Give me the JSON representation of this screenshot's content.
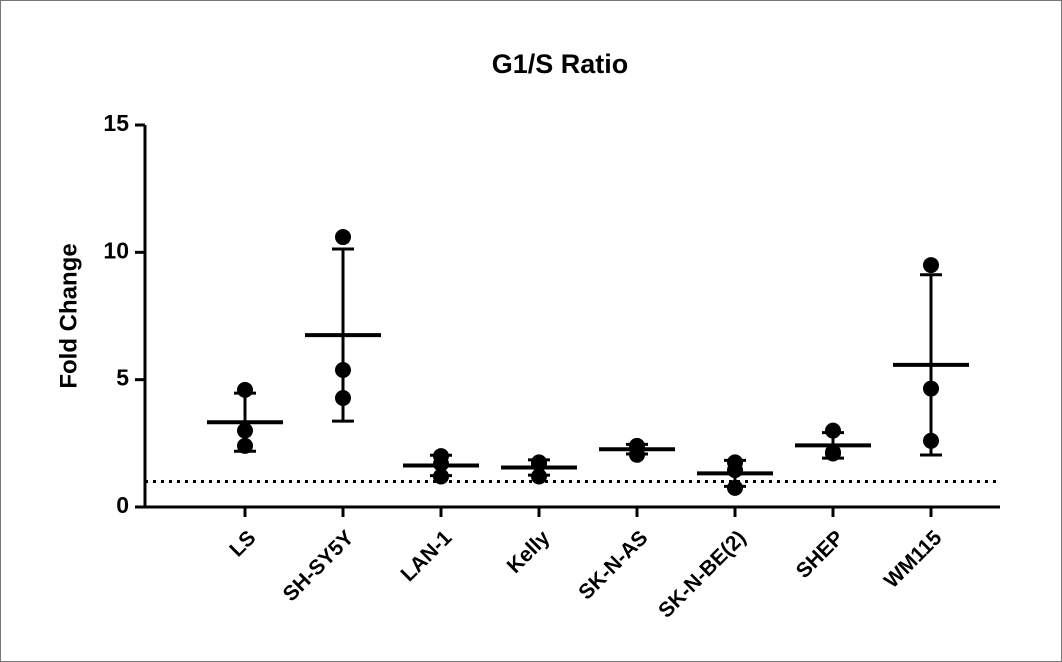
{
  "chart_data": {
    "type": "scatter-mean-sd",
    "title": "G1/S Ratio",
    "y_label": "Fold Change",
    "categories": [
      "LS",
      "SH-SY5Y",
      "LAN-1",
      "Kelly",
      "SK-N-AS",
      "SK-N-BE(2)",
      "SHEP",
      "WM115"
    ],
    "points": [
      [
        4.6,
        3.0,
        2.4
      ],
      [
        10.6,
        5.38,
        4.28
      ],
      [
        2.0,
        1.2,
        1.7
      ],
      [
        1.75,
        1.2,
        1.7
      ],
      [
        2.05,
        2.4,
        2.35
      ],
      [
        1.75,
        0.75,
        1.45
      ],
      [
        3.0,
        2.1,
        2.15
      ],
      [
        9.5,
        4.65,
        2.6
      ]
    ],
    "means": [
      3.33,
      6.75,
      1.63,
      1.55,
      2.27,
      1.32,
      2.42,
      5.58
    ],
    "sds": [
      1.14,
      3.38,
      0.4,
      0.3,
      0.19,
      0.51,
      0.5,
      3.54
    ],
    "reference_line": 1,
    "color": "#000000",
    "ylim": [
      0,
      15
    ],
    "yticks": [
      0,
      5,
      10,
      15
    ]
  }
}
